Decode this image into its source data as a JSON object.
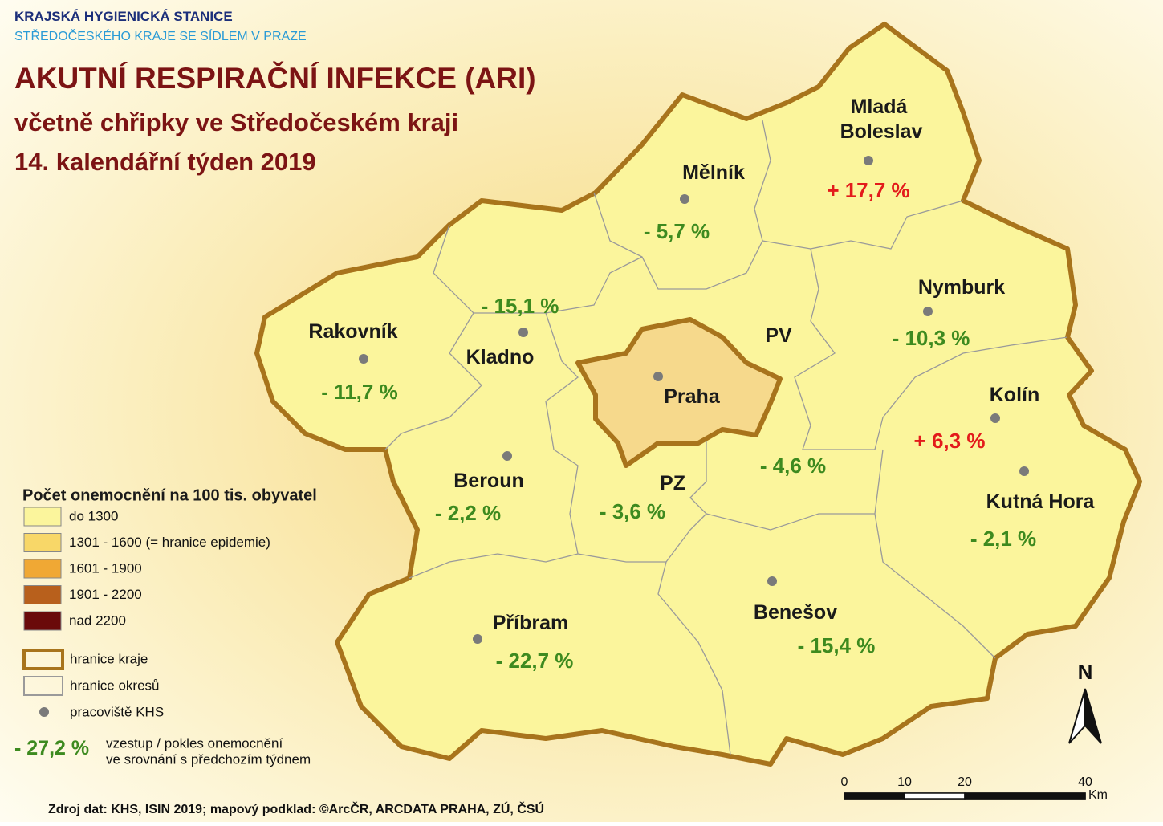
{
  "header": {
    "org": "KRAJSKÁ HYGIENICKÁ STANICE",
    "org_sub": "STŘEDOČESKÉHO KRAJE SE SÍDLEM V PRAZE",
    "title": "AKUTNÍ RESPIRAČNÍ INFEKCE (ARI)",
    "subtitle": "včetně chřipky ve Středočeském kraji",
    "week": "14. kalendářní týden 2019"
  },
  "districts": [
    {
      "name": [
        "Mladá",
        "Boleslav"
      ],
      "change": "+ 17,7 %",
      "trend": "up"
    },
    {
      "name": "Mělník",
      "change": "- 5,7 %",
      "trend": "down"
    },
    {
      "name": "Nymburk",
      "change": "- 10,3 %",
      "trend": "down"
    },
    {
      "name": "Kolín",
      "change": "+ 6,3 %",
      "trend": "up"
    },
    {
      "name": "Kutná Hora",
      "change": "- 2,1 %",
      "trend": "down"
    },
    {
      "name": "Benešov",
      "change": "- 15,4 %",
      "trend": "down"
    },
    {
      "name": "Příbram",
      "change": "- 22,7 %",
      "trend": "down"
    },
    {
      "name": "Beroun",
      "change": "- 2,2 %",
      "trend": "down"
    },
    {
      "name": "Rakovník",
      "change": "- 11,7 %",
      "trend": "down"
    },
    {
      "name": "Kladno",
      "change": "- 15,1 %",
      "trend": "down"
    },
    {
      "name": "PV",
      "change": "- 4,6 %",
      "trend": "down"
    },
    {
      "name": "PZ",
      "change": "- 3,6 %",
      "trend": "down"
    },
    {
      "name": "Praha"
    }
  ],
  "trend_colors": {
    "up": "#e31b1b",
    "down": "#3d8a1f"
  },
  "legend": {
    "title": "Počet onemocnění na 100 tis. obyvatel",
    "classes": [
      {
        "label": "do 1300",
        "color": "#fbf59c"
      },
      {
        "label": "1301 - 1600 (= hranice epidemie)",
        "color": "#f8d768"
      },
      {
        "label": "1601 - 1900",
        "color": "#f0a834"
      },
      {
        "label": "1901 - 2200",
        "color": "#b8601c"
      },
      {
        "label": "nad 2200",
        "color": "#6a0a0a"
      }
    ],
    "region_border": "hranice kraje",
    "district_border": "hranice okresů",
    "office": "pracoviště KHS",
    "example_value": "- 27,2 %",
    "example_text": [
      "vzestup / pokles onemocnění",
      "ve srovnání s předchozím týdnem"
    ]
  },
  "scale": {
    "ticks": [
      0,
      10,
      20,
      40
    ],
    "unit": "Km"
  },
  "north": "N",
  "source": "Zdroj dat: KHS, ISIN 2019; mapový podklad: ©ArcČR, ARCDATA PRAHA, ZÚ, ČSÚ"
}
